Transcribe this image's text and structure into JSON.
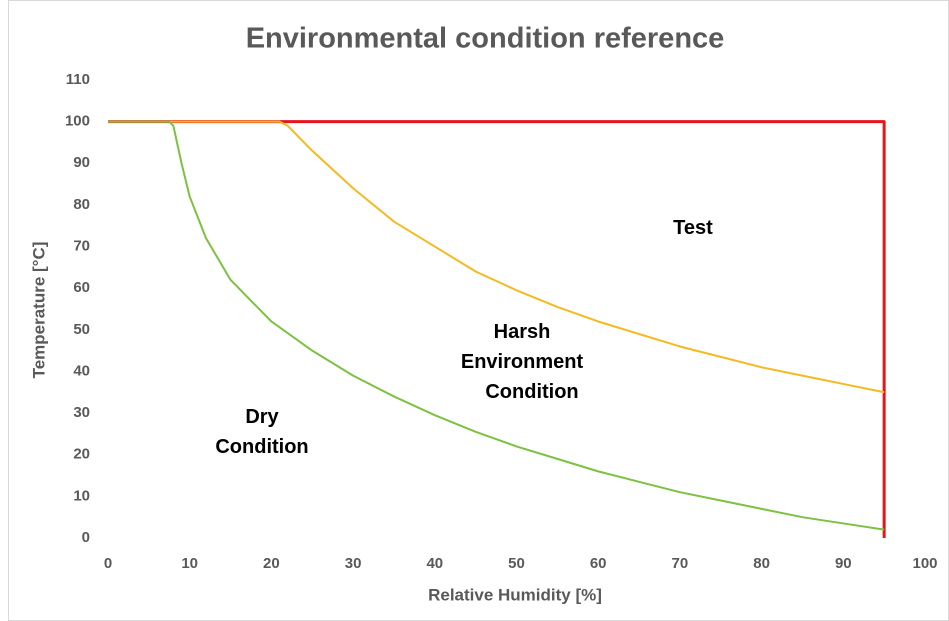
{
  "chart_data": {
    "type": "line",
    "title": "Environmental condition reference",
    "xlabel": "Relative Humidity [%]",
    "ylabel": "Temperature [°C]",
    "xlim": [
      0,
      100
    ],
    "xticks": [
      0,
      10,
      20,
      30,
      40,
      50,
      60,
      70,
      80,
      90,
      100
    ],
    "ylim": [
      0,
      110
    ],
    "yticks": [
      0,
      10,
      20,
      30,
      40,
      50,
      60,
      70,
      80,
      90,
      100,
      110
    ],
    "grid": false,
    "series": [
      {
        "color": "#e8141b",
        "x": [
          0,
          95,
          95
        ],
        "values": [
          100,
          100,
          0
        ]
      },
      {
        "color": "#f5b921",
        "x": [
          0,
          21,
          22,
          25,
          30,
          35,
          40,
          45,
          50,
          55,
          60,
          65,
          70,
          75,
          80,
          85,
          90,
          95
        ],
        "values": [
          100,
          100,
          99,
          93,
          84,
          76,
          70,
          64,
          59.5,
          55.5,
          52,
          49,
          46,
          43.5,
          41,
          39,
          37,
          35
        ]
      },
      {
        "color": "#7dc142",
        "x": [
          0,
          7.5,
          8,
          9,
          10,
          12,
          15,
          20,
          25,
          30,
          35,
          40,
          45,
          50,
          55,
          60,
          65,
          70,
          75,
          80,
          85,
          90,
          95
        ],
        "values": [
          100,
          100,
          99,
          90,
          82,
          72,
          62,
          52,
          45,
          39,
          34,
          29.5,
          25.5,
          22,
          19,
          16,
          13.5,
          11,
          9,
          7,
          5,
          3.5,
          2
        ]
      }
    ],
    "annotations": [
      [
        "Test"
      ],
      [
        "Harsh",
        "Environment",
        "Condition"
      ],
      [
        "Dry",
        "Condition"
      ]
    ]
  }
}
